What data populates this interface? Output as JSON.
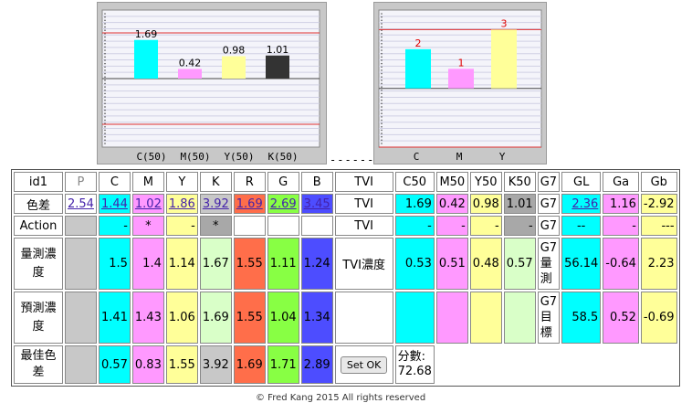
{
  "chart_data": [
    {
      "type": "bar",
      "categories": [
        "C(50)",
        "M(50)",
        "Y(50)",
        "K(50)"
      ],
      "values": [
        1.69,
        0.42,
        0.98,
        1.01
      ],
      "value_labels": [
        "1.69",
        "0.42",
        "0.98",
        "1.01"
      ],
      "colors": [
        "#00ffff",
        "#ff99ff",
        "#ffff99",
        "#333333"
      ],
      "ylim": [
        -3,
        3
      ],
      "reference_lines": [
        2,
        0,
        -2
      ],
      "grid": true
    },
    {
      "type": "bar",
      "categories": [
        "C",
        "M",
        "Y"
      ],
      "values": [
        2,
        1,
        3
      ],
      "value_labels": [
        "2",
        "1",
        "3"
      ],
      "colors": [
        "#00ffff",
        "#ff99ff",
        "#ffff99"
      ],
      "ylim": [
        -3,
        4
      ],
      "reference_lines": [
        3,
        0,
        -3
      ],
      "grid": true
    }
  ],
  "separator": "------",
  "table": {
    "header": [
      "id1",
      "P",
      "C",
      "M",
      "Y",
      "K",
      "R",
      "G",
      "B",
      "TVI",
      "C50",
      "M50",
      "Y50",
      "K50",
      "G7",
      "GL",
      "Ga",
      "Gb"
    ],
    "row_delta": {
      "label": "色差",
      "values": [
        "2.54",
        "1.44",
        "1.02",
        "1.86",
        "3.92",
        "1.69",
        "2.69",
        "3.45"
      ],
      "tvi_label": "TVI",
      "tvi_values": [
        "1.69",
        "0.42",
        "0.98",
        "1.01"
      ],
      "g7": "G7",
      "g_values": [
        "2.36",
        "1.16",
        "-2.92"
      ]
    },
    "row_action": {
      "label": "Action",
      "values": [
        "",
        "-",
        "*",
        "-",
        "*",
        "",
        "",
        ""
      ],
      "tvi_label": "TVI",
      "tvi_values": [
        "-",
        "-",
        "-",
        "-"
      ],
      "g7": "G7",
      "g_values": [
        "--",
        "-",
        "---"
      ]
    },
    "row_measured": {
      "label": "量測濃度",
      "values": [
        "",
        "1.5",
        "1.4",
        "1.14",
        "1.67",
        "1.55",
        "1.11",
        "1.24"
      ],
      "tvi_label": "TVI濃度",
      "tvi_values": [
        "0.53",
        "0.51",
        "0.48",
        "0.57"
      ],
      "g7": "G7量測",
      "g_values": [
        "56.14",
        "-0.64",
        "2.23"
      ]
    },
    "row_predicted": {
      "label": "預測濃度",
      "values": [
        "",
        "1.41",
        "1.43",
        "1.06",
        "1.69",
        "1.55",
        "1.04",
        "1.34"
      ],
      "tvi_label": "",
      "tvi_values": [
        "",
        "",
        "",
        ""
      ],
      "g7": "G7目標",
      "g_values": [
        "58.5",
        "0.52",
        "-0.69"
      ]
    },
    "row_best": {
      "label": "最佳色差",
      "values": [
        "",
        "0.57",
        "0.83",
        "1.55",
        "3.92",
        "1.69",
        "1.71",
        "2.89"
      ],
      "button": "Set OK",
      "score_label": "分數:",
      "score": "72.68"
    }
  },
  "footer": "© Fred Kang 2015 All rights reserved"
}
